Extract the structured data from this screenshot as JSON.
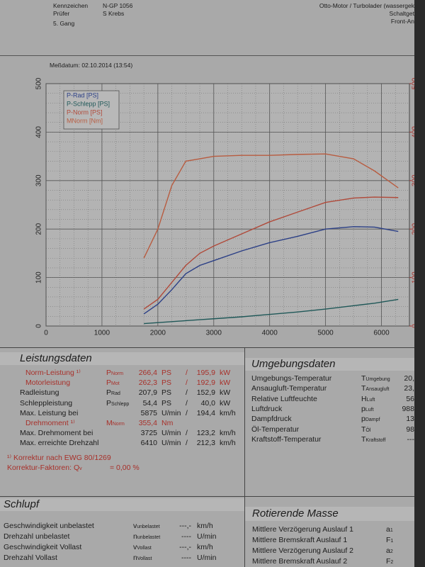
{
  "header": {
    "fields": [
      {
        "label": "Kennzeichen",
        "value": "N-GP 1056"
      },
      {
        "label": "Prüfer",
        "value": "S Krebs"
      }
    ],
    "gear": "5. Gang",
    "right": [
      "Otto-Motor / Turbolader (wassergek",
      "Schaltget",
      "Front-An"
    ],
    "date": "Meßdatum: 02.10.2014 (13:54)"
  },
  "chart_data": {
    "type": "line",
    "x": [
      1750,
      2000,
      2250,
      2500,
      2750,
      3000,
      3500,
      4000,
      4500,
      5000,
      5500,
      5875,
      6300
    ],
    "series": [
      {
        "name": "P-Rad [PS]",
        "color": "#2b3f86",
        "values": [
          25,
          45,
          75,
          108,
          125,
          135,
          155,
          172,
          185,
          200,
          205,
          204,
          195
        ]
      },
      {
        "name": "P-Schlepp [PS]",
        "color": "#1f5858",
        "values": [
          5,
          7,
          9,
          11,
          13,
          15,
          19,
          24,
          29,
          35,
          42,
          47,
          55
        ]
      },
      {
        "name": "P-Norm [PS]",
        "color": "#b04a3a",
        "values": [
          35,
          55,
          90,
          125,
          150,
          165,
          190,
          215,
          235,
          255,
          264,
          266,
          265
        ]
      },
      {
        "name": "MNorm [Nm]",
        "color": "#b85c40",
        "axis": "y2",
        "values": [
          140,
          200,
          290,
          340,
          345,
          350,
          352,
          352,
          354,
          355,
          345,
          320,
          285
        ]
      }
    ],
    "xlim": [
      0,
      6500
    ],
    "xticks": [
      0,
      1000,
      2000,
      3000,
      4000,
      5000,
      6000
    ],
    "ylim": [
      0,
      500
    ],
    "yticks": [
      0,
      100,
      200,
      300,
      400,
      500
    ],
    "y2lim": [
      0,
      500
    ],
    "y2ticks": [
      0,
      100,
      200,
      300,
      400,
      500
    ],
    "grid": true
  },
  "performance": {
    "title": "Leistungsdaten",
    "rows": [
      {
        "label": "Norm-Leistung ¹⁾",
        "sym": "P",
        "sub": "Norm",
        "v1": "266,4",
        "u1": "PS",
        "sep": "/",
        "v2": "195,9",
        "u2": "kW",
        "color": "#a8302a"
      },
      {
        "label": "Motorleistung",
        "sym": "P",
        "sub": "Mot",
        "v1": "262,3",
        "u1": "PS",
        "sep": "/",
        "v2": "192,9",
        "u2": "kW",
        "color": "#a8302a"
      },
      {
        "label": "Radleistung",
        "sym": "P",
        "sub": "Rad",
        "v1": "207,9",
        "u1": "PS",
        "sep": "/",
        "v2": "152,9",
        "u2": "kW"
      },
      {
        "label": "Schleppleistung",
        "sym": "P",
        "sub": "Schlepp",
        "v1": "54,4",
        "u1": "PS",
        "sep": "/",
        "v2": "40,0",
        "u2": "kW"
      },
      {
        "label": "Max. Leistung bei",
        "v1": "5875",
        "u1": "U/min",
        "sep": "/",
        "v2": "194,4",
        "u2": "km/h"
      },
      {
        "label": "Drehmoment ¹⁾",
        "sym": "M",
        "sub": "Norm",
        "v1": "355,4",
        "u1": "Nm",
        "color": "#a8302a"
      },
      {
        "label": "Max. Drehmoment bei",
        "v1": "3725",
        "u1": "U/min",
        "sep": "/",
        "v2": "123,2",
        "u2": "km/h"
      },
      {
        "label": "Max. erreichte Drehzahl",
        "v1": "6410",
        "u1": "U/min",
        "sep": "/",
        "v2": "212,3",
        "u2": "km/h"
      }
    ],
    "notes": [
      {
        "text": "¹⁾ Korrektur nach EWG 80/1269"
      },
      {
        "text": "Korrektur-Faktoren: Q",
        "sub": "v",
        "value": "=   0,00 %"
      }
    ]
  },
  "environment": {
    "title": "Umgebungsdaten",
    "rows": [
      {
        "label": "Umgebungs-Temperatur",
        "sym": "T",
        "sub": "Umgebung",
        "v1": "20,"
      },
      {
        "label": "Ansaugluft-Temperatur",
        "sym": "T",
        "sub": "Ansaugluft",
        "v1": "23,"
      },
      {
        "label": "Relative Luftfeuchte",
        "sym": "H",
        "sub": "Luft",
        "v1": "56"
      },
      {
        "label": "Luftdruck",
        "sym": "p",
        "sub": "Luft",
        "v1": "988"
      },
      {
        "label": "Dampfdruck",
        "sym": "p",
        "sub": "Dampf",
        "v1": "13"
      },
      {
        "label": "Öl-Temperatur",
        "sym": "T",
        "sub": "Öl",
        "v1": "98"
      },
      {
        "label": "Kraftstoff-Temperatur",
        "sym": "T",
        "sub": "Kraftstoff",
        "v1": "---"
      }
    ]
  },
  "slip": {
    "title": "Schlupf",
    "rows": [
      {
        "label": "Geschwindigkeit unbelastet",
        "sym": "v",
        "sub": "unbelastet",
        "v1": "---,-",
        "u1": "km/h"
      },
      {
        "label": "Drehzahl unbelastet",
        "sym": "n",
        "sub": "unbelastet",
        "v1": "----",
        "u1": "U/min"
      },
      {
        "label": "Geschwindigkeit Vollast",
        "sym": "v",
        "sub": "Vollast",
        "v1": "---,-",
        "u1": "km/h"
      },
      {
        "label": "Drehzahl Vollast",
        "sym": "n",
        "sub": "Vollast",
        "v1": "----",
        "u1": "U/min"
      }
    ]
  },
  "rotating": {
    "title": "Rotierende Masse",
    "rows": [
      {
        "label": "Mittlere Verzögerung Auslauf 1",
        "sym": "a",
        "sub": "1"
      },
      {
        "label": "Mittlere Bremskraft Auslauf 1",
        "sym": "F",
        "sub": "1"
      },
      {
        "label": "Mittlere Verzögerung Auslauf 2",
        "sym": "a",
        "sub": "2"
      },
      {
        "label": "Mittlere Bremskraft Auslauf 2",
        "sym": "F",
        "sub": "2"
      }
    ]
  }
}
